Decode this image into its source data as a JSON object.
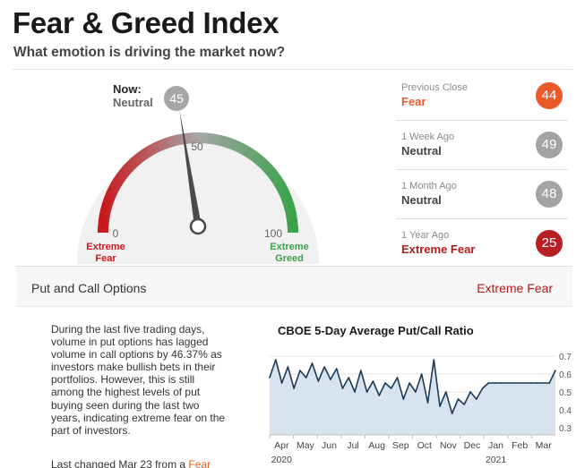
{
  "header": {
    "title": "Fear & Greed Index",
    "subtitle": "What emotion is driving the market now?"
  },
  "gauge": {
    "now_label": "Now:",
    "now_status": "Neutral",
    "value": 45,
    "min_label": "0",
    "mid_label": "50",
    "max_label": "100",
    "low_label_line1": "Extreme",
    "low_label_line2": "Fear",
    "high_label_line1": "Extreme",
    "high_label_line2": "Greed",
    "colors": {
      "fear": "#c8191e",
      "neutral": "#a6a6a6",
      "greed": "#3aa34a",
      "needle": "#4a4a4a"
    }
  },
  "history": [
    {
      "label": "Previous Close",
      "status": "Fear",
      "value": "44",
      "status_color": "#e85c26",
      "badge_color": "#ea5a28"
    },
    {
      "label": "1 Week Ago",
      "status": "Neutral",
      "value": "49",
      "status_color": "#444444",
      "badge_color": "#a3a3a3"
    },
    {
      "label": "1 Month Ago",
      "status": "Neutral",
      "value": "48",
      "status_color": "#444444",
      "badge_color": "#a3a3a3"
    },
    {
      "label": "1 Year Ago",
      "status": "Extreme Fear",
      "value": "25",
      "status_color": "#b01b1b",
      "badge_color": "#b81e22"
    }
  ],
  "indicator": {
    "title": "Put and Call Options",
    "status": "Extreme Fear",
    "description": "During the last five trading days, volume in put options has lagged volume in call options by 46.37% as investors make bullish bets in their portfolios. However, this is still among the highest levels of put buying seen during the last two years, indicating extreme fear on the part of investors.",
    "last_changed_prefix": "Last changed Mar 23 from a ",
    "last_changed_link": "Fear"
  },
  "chart_data": {
    "type": "area",
    "title": "CBOE 5-Day Average Put/Call Ratio",
    "x_tick_labels": [
      "Apr",
      "May",
      "Jun",
      "Jul",
      "Aug",
      "Sep",
      "Oct",
      "Nov",
      "Dec",
      "Jan",
      "Feb",
      "Mar"
    ],
    "x_year_labels": [
      {
        "month": "Apr",
        "year": "2020"
      },
      {
        "month": "Jan",
        "year": "2021"
      }
    ],
    "y_ticks": [
      0.3,
      0.4,
      0.5,
      0.6,
      0.7
    ],
    "ylim": [
      0.26,
      0.74
    ],
    "x": [
      "Apr 2020",
      "Apr 2020",
      "Apr 2020",
      "Apr 2020",
      "May 2020",
      "May 2020",
      "May 2020",
      "May 2020",
      "Jun 2020",
      "Jun 2020",
      "Jun 2020",
      "Jun 2020",
      "Jul 2020",
      "Jul 2020",
      "Jul 2020",
      "Jul 2020",
      "Aug 2020",
      "Aug 2020",
      "Aug 2020",
      "Aug 2020",
      "Sep 2020",
      "Sep 2020",
      "Sep 2020",
      "Sep 2020",
      "Oct 2020",
      "Oct 2020",
      "Oct 2020",
      "Oct 2020",
      "Nov 2020",
      "Nov 2020",
      "Nov 2020",
      "Nov 2020",
      "Dec 2020",
      "Dec 2020",
      "Dec 2020",
      "Dec 2020",
      "Jan 2021",
      "Jan 2021",
      "Jan 2021",
      "Jan 2021",
      "Feb 2021",
      "Feb 2021",
      "Feb 2021",
      "Feb 2021",
      "Mar 2021",
      "Mar 2021",
      "Mar 2021",
      "Mar 2021"
    ],
    "values": [
      0.58,
      0.68,
      0.55,
      0.64,
      0.52,
      0.62,
      0.58,
      0.66,
      0.56,
      0.64,
      0.57,
      0.63,
      0.52,
      0.58,
      0.5,
      0.62,
      0.5,
      0.56,
      0.48,
      0.55,
      0.52,
      0.58,
      0.46,
      0.55,
      0.5,
      0.6,
      0.44,
      0.68,
      0.42,
      0.5,
      0.38,
      0.46,
      0.43,
      0.5,
      0.46,
      0.52,
      0.55,
      0.55,
      0.55,
      0.55,
      0.55,
      0.55,
      0.55,
      0.55,
      0.55,
      0.55,
      0.55,
      0.62
    ],
    "fill_color": "#d7e3ef",
    "line_color": "#1c3b57",
    "grid": true
  }
}
